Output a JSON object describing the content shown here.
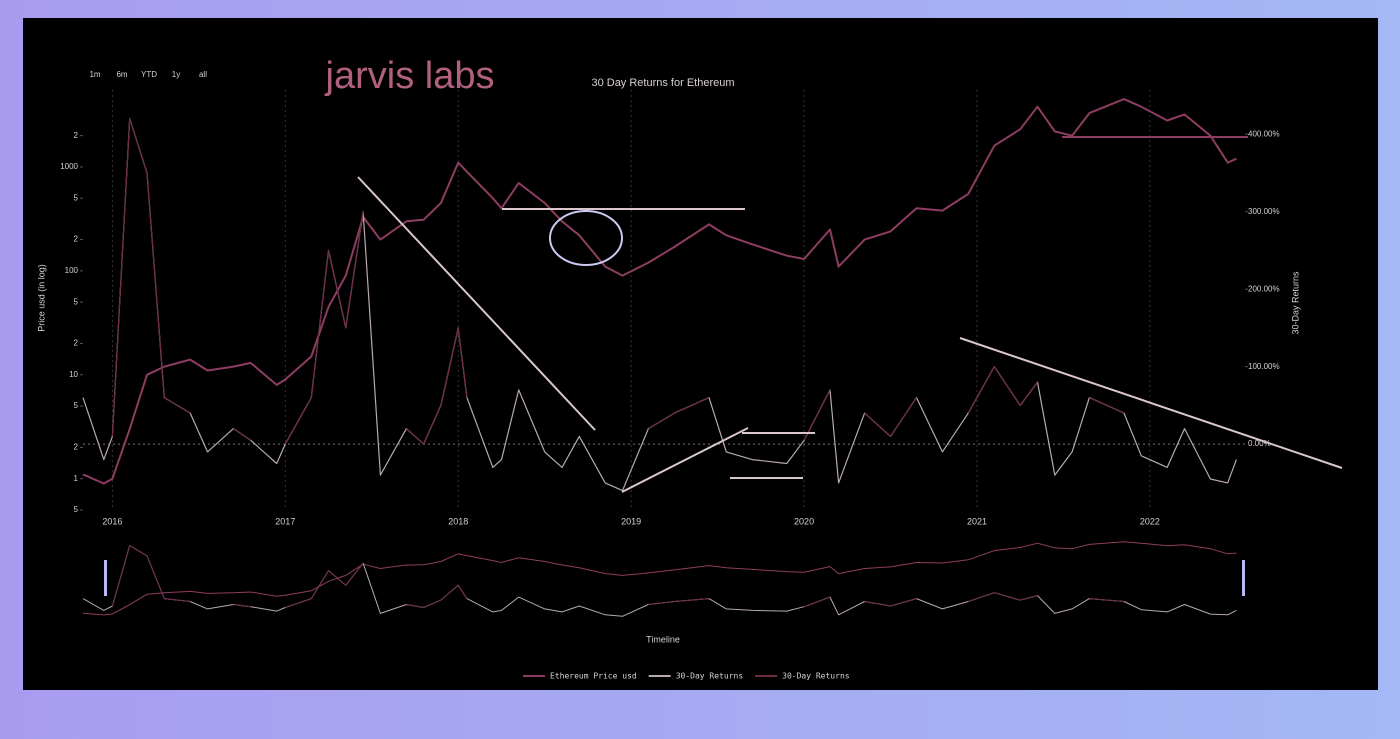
{
  "logo": "jarvis labs",
  "range_buttons": [
    "1m",
    "6m",
    "YTD",
    "1y",
    "all"
  ],
  "chart_data": {
    "type": "line",
    "title": "30 Day Returns for Ethereum",
    "y_label": "Price usd (in log)",
    "y2_label": "30-Day Returns",
    "x_label": "Timeline",
    "log_y": true,
    "grid": true,
    "legend": "bottom",
    "x": [
      2015.83,
      2015.95,
      2016.0,
      2016.1,
      2016.2,
      2016.3,
      2016.45,
      2016.55,
      2016.7,
      2016.8,
      2016.95,
      2017.0,
      2017.15,
      2017.25,
      2017.35,
      2017.45,
      2017.55,
      2017.7,
      2017.8,
      2017.9,
      2018.0,
      2018.05,
      2018.2,
      2018.25,
      2018.35,
      2018.5,
      2018.6,
      2018.7,
      2018.85,
      2018.95,
      2019.1,
      2019.25,
      2019.45,
      2019.55,
      2019.7,
      2019.9,
      2020.0,
      2020.15,
      2020.2,
      2020.35,
      2020.5,
      2020.65,
      2020.8,
      2020.95,
      2021.1,
      2021.25,
      2021.35,
      2021.45,
      2021.55,
      2021.65,
      2021.85,
      2021.95,
      2022.1,
      2022.2,
      2022.35,
      2022.45,
      2022.5
    ],
    "xlim": [
      2015.83,
      2022.55
    ],
    "xticks": [
      2016,
      2017,
      2018,
      2019,
      2020,
      2021,
      2022
    ],
    "ylim": [
      0.5,
      5500
    ],
    "yticks": [
      {
        "value": 0.5,
        "label": "5"
      },
      1,
      {
        "value": 2,
        "label": "2"
      },
      {
        "value": 5,
        "label": "5"
      },
      10,
      {
        "value": 20,
        "label": "2"
      },
      {
        "value": 50,
        "label": "5"
      },
      100,
      {
        "value": 200,
        "label": "2"
      },
      {
        "value": 500,
        "label": "5"
      },
      1000,
      {
        "value": 2000,
        "label": "2"
      }
    ],
    "y2lim": [
      -85,
      457
    ],
    "y2ticks": [
      {
        "value": 0,
        "label": "0.00%"
      },
      {
        "value": 100,
        "label": "100.00%"
      },
      {
        "value": 200,
        "label": "200.00%"
      },
      {
        "value": 300,
        "label": "300.00%"
      },
      {
        "value": 400,
        "label": "400.00%"
      }
    ],
    "series": [
      {
        "name": "Ethereum Price usd",
        "color": "#8e3d62",
        "values": [
          1.1,
          0.9,
          1.0,
          3,
          10,
          12,
          14,
          11,
          12,
          13,
          8,
          9,
          15,
          45,
          90,
          330,
          200,
          300,
          310,
          450,
          1100,
          900,
          500,
          400,
          700,
          450,
          300,
          220,
          110,
          90,
          120,
          170,
          280,
          220,
          180,
          140,
          130,
          250,
          110,
          200,
          240,
          400,
          380,
          550,
          1600,
          2300,
          3800,
          2200,
          2000,
          3300,
          4500,
          3800,
          2800,
          3200,
          2000,
          1100,
          1200
        ]
      },
      {
        "name": "30-Day Returns",
        "color": "#b8a9ad",
        "axis": "y2",
        "values": [
          60,
          -20,
          10,
          420,
          350,
          60,
          40,
          -10,
          20,
          5,
          -25,
          0,
          60,
          250,
          150,
          300,
          -40,
          20,
          0,
          50,
          150,
          60,
          -30,
          -20,
          70,
          -10,
          -30,
          10,
          -50,
          -60,
          20,
          40,
          60,
          -10,
          -20,
          -25,
          5,
          70,
          -50,
          40,
          10,
          60,
          -10,
          40,
          100,
          50,
          80,
          -40,
          -10,
          60,
          40,
          -15,
          -30,
          20,
          -45,
          -50,
          -20
        ]
      },
      {
        "name": "30-Day Returns",
        "color": "#6e2a48",
        "axis": "y2",
        "values": [
          60,
          null,
          10,
          420,
          350,
          60,
          40,
          null,
          20,
          5,
          null,
          0,
          60,
          250,
          150,
          300,
          null,
          20,
          0,
          50,
          150,
          60,
          null,
          null,
          70,
          null,
          null,
          10,
          null,
          null,
          20,
          40,
          60,
          null,
          null,
          null,
          5,
          70,
          null,
          40,
          10,
          60,
          null,
          40,
          100,
          50,
          80,
          null,
          null,
          60,
          40,
          null,
          null,
          20,
          null,
          null,
          null
        ]
      }
    ]
  }
}
